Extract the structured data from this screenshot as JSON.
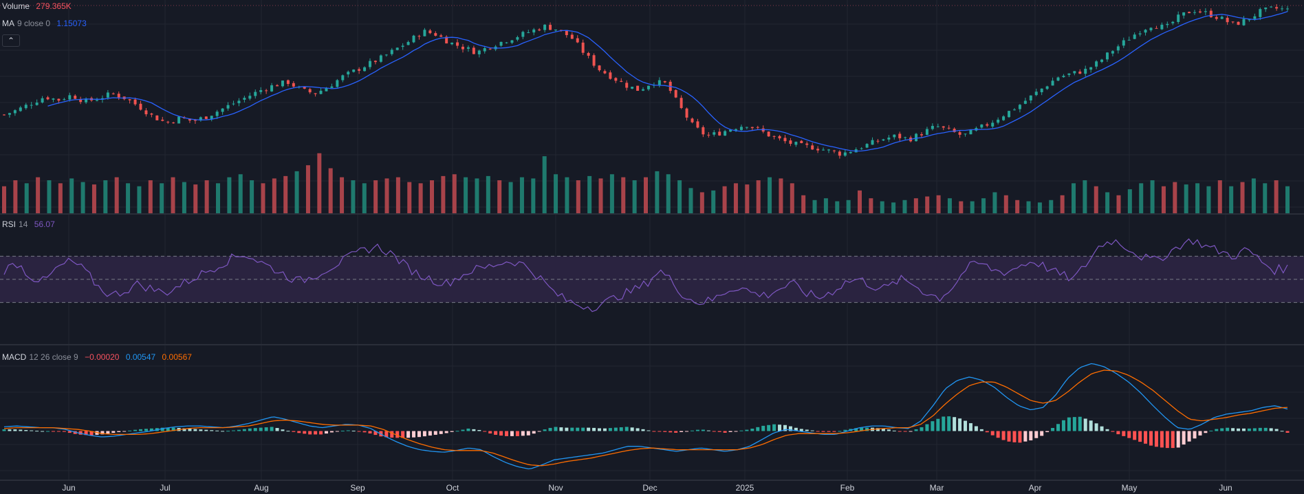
{
  "legend": {
    "volume": {
      "name": "Volume",
      "value": "279.365K",
      "value_color": "#f7525f"
    },
    "ma": {
      "name": "MA",
      "params": "9 close 0",
      "value": "1.15073",
      "value_color": "#2962ff"
    },
    "rsi": {
      "name": "RSI",
      "params": "14",
      "value": "56.07",
      "value_color": "#7e57c2"
    },
    "macd": {
      "name": "MACD",
      "params": "12 26 close 9",
      "hist_value": "−0.00020",
      "hist_color": "#f7525f",
      "macd_value": "0.00547",
      "macd_color": "#2196f3",
      "signal_value": "0.00567",
      "signal_color": "#ff6d00"
    },
    "collapse_button": "⌃"
  },
  "x_axis": {
    "labels": [
      "Jun",
      "Jul",
      "Aug",
      "Sep",
      "Oct",
      "Nov",
      "Dec",
      "2025",
      "Feb",
      "Mar",
      "Apr",
      "May",
      "Jun"
    ]
  },
  "colors": {
    "background": "#161a25",
    "grid": "#222631",
    "up": "#26a69a",
    "down": "#ef5350",
    "volume_up": "#1f7a6e",
    "volume_down": "#a8434a",
    "ma_line": "#2962ff",
    "rsi_line": "#7e57c2",
    "rsi_band": "#2a2340",
    "macd_line": "#2196f3",
    "signal_line": "#ff6d00",
    "hist_up_strong": "#26a69a",
    "hist_up_weak": "#b2dfdb",
    "hist_down_strong": "#ff5252",
    "hist_down_weak": "#ffcdd2"
  },
  "chart_data": [
    {
      "type": "candlestick",
      "title": "",
      "x_range": [
        "May 2024",
        "Jun 2025"
      ],
      "grid": true,
      "price_path": [
        0.35,
        0.38,
        0.42,
        0.46,
        0.44,
        0.47,
        0.43,
        0.45,
        0.48,
        0.45,
        0.4,
        0.34,
        0.3,
        0.33,
        0.31,
        0.34,
        0.38,
        0.42,
        0.46,
        0.5,
        0.53,
        0.55,
        0.5,
        0.48,
        0.52,
        0.58,
        0.62,
        0.66,
        0.7,
        0.75,
        0.8,
        0.86,
        0.84,
        0.79,
        0.76,
        0.73,
        0.77,
        0.8,
        0.83,
        0.86,
        0.89,
        0.87,
        0.82,
        0.72,
        0.63,
        0.58,
        0.53,
        0.5,
        0.55,
        0.54,
        0.4,
        0.28,
        0.22,
        0.24,
        0.27,
        0.29,
        0.25,
        0.21,
        0.18,
        0.16,
        0.15,
        0.13,
        0.11,
        0.14,
        0.17,
        0.2,
        0.22,
        0.2,
        0.24,
        0.28,
        0.25,
        0.22,
        0.26,
        0.3,
        0.35,
        0.4,
        0.46,
        0.52,
        0.58,
        0.6,
        0.62,
        0.67,
        0.74,
        0.8,
        0.86,
        0.9,
        0.88,
        0.95,
        0.99,
        0.97,
        0.94,
        0.9,
        0.93,
        0.98,
        1.0,
        0.99
      ],
      "ma_period": 9,
      "rsi_levels": {
        "upper": 70,
        "middle": 50,
        "lower": 30,
        "range": [
          0,
          100
        ]
      },
      "rsi_path": [
        58,
        64,
        52,
        48,
        60,
        66,
        58,
        44,
        36,
        40,
        46,
        42,
        38,
        44,
        50,
        56,
        62,
        68,
        72,
        66,
        60,
        54,
        48,
        52,
        58,
        64,
        70,
        76,
        78,
        72,
        62,
        54,
        50,
        46,
        52,
        58,
        60,
        64,
        66,
        62,
        52,
        40,
        32,
        28,
        26,
        30,
        36,
        40,
        46,
        58,
        48,
        34,
        30,
        32,
        40,
        44,
        38,
        36,
        42,
        46,
        38,
        34,
        40,
        48,
        50,
        44,
        42,
        50,
        46,
        38,
        34,
        44,
        60,
        64,
        58,
        56,
        62,
        66,
        60,
        54,
        50,
        64,
        80,
        84,
        78,
        70,
        66,
        72,
        80,
        84,
        78,
        74,
        70,
        76,
        66,
        58,
        60
      ],
      "macd_path": [
        0.0005,
        0.0006,
        0.0005,
        0.0004,
        0.0004,
        0.0002,
        -0.0002,
        -0.0005,
        -0.0007,
        -0.0006,
        -0.0004,
        -0.0002,
        0.0,
        0.0003,
        0.0005,
        0.0006,
        0.0006,
        0.0005,
        0.0004,
        0.0006,
        0.0009,
        0.0013,
        0.0017,
        0.0014,
        0.001,
        0.0006,
        0.0004,
        0.0006,
        0.0008,
        0.0007,
        0.0003,
        -0.0005,
        -0.0012,
        -0.0018,
        -0.0022,
        -0.0024,
        -0.0025,
        -0.0023,
        -0.002,
        -0.0022,
        -0.003,
        -0.0037,
        -0.0042,
        -0.0045,
        -0.004,
        -0.0034,
        -0.0032,
        -0.003,
        -0.0028,
        -0.0026,
        -0.0022,
        -0.0018,
        -0.0018,
        -0.002,
        -0.0022,
        -0.0024,
        -0.0022,
        -0.002,
        -0.0022,
        -0.0024,
        -0.0022,
        -0.0018,
        -0.001,
        -0.0002,
        0.0002,
        0.0,
        -0.0002,
        -0.0004,
        -0.0004,
        0.0,
        0.0004,
        0.0006,
        0.0006,
        0.0004,
        0.0003,
        0.0012,
        0.003,
        0.005,
        0.006,
        0.0064,
        0.006,
        0.0052,
        0.004,
        0.003,
        0.0025,
        0.0028,
        0.0042,
        0.0062,
        0.0075,
        0.008,
        0.0076,
        0.0068,
        0.0058,
        0.0045,
        0.003,
        0.0016,
        0.0004,
        0.0002,
        0.0008,
        0.0016,
        0.002,
        0.0022,
        0.0024,
        0.0028,
        0.003,
        0.0026
      ],
      "signal_path": [
        0.0003,
        0.0004,
        0.0004,
        0.0004,
        0.0004,
        0.0003,
        0.0002,
        0.0,
        -0.0003,
        -0.0004,
        -0.0004,
        -0.0004,
        -0.0003,
        -0.0001,
        0.0001,
        0.0003,
        0.0004,
        0.0004,
        0.0004,
        0.0005,
        0.0006,
        0.0009,
        0.0012,
        0.0013,
        0.0012,
        0.001,
        0.0008,
        0.0007,
        0.0007,
        0.0007,
        0.0006,
        0.0002,
        -0.0004,
        -0.001,
        -0.0015,
        -0.0019,
        -0.0022,
        -0.0023,
        -0.0023,
        -0.0023,
        -0.0026,
        -0.0031,
        -0.0036,
        -0.004,
        -0.0041,
        -0.0039,
        -0.0036,
        -0.0034,
        -0.0032,
        -0.0029,
        -0.0026,
        -0.0023,
        -0.0021,
        -0.002,
        -0.0021,
        -0.0022,
        -0.0022,
        -0.0022,
        -0.0022,
        -0.0022,
        -0.0022,
        -0.002,
        -0.0016,
        -0.001,
        -0.0005,
        -0.0003,
        -0.0003,
        -0.0003,
        -0.0003,
        -0.0002,
        0.0,
        0.0002,
        0.0003,
        0.0004,
        0.0004,
        0.0008,
        0.0018,
        0.0032,
        0.0044,
        0.0054,
        0.0058,
        0.0058,
        0.0052,
        0.0044,
        0.0036,
        0.0033,
        0.0036,
        0.0046,
        0.0058,
        0.0068,
        0.0072,
        0.0071,
        0.0066,
        0.0058,
        0.0048,
        0.0036,
        0.0024,
        0.0014,
        0.0012,
        0.0014,
        0.0016,
        0.0019,
        0.0021,
        0.0024,
        0.0027,
        0.0028
      ],
      "ylim": [
        -0.005,
        0.0085
      ],
      "volume_path": [
        0.45,
        0.55,
        0.5,
        0.6,
        0.55,
        0.5,
        0.58,
        0.52,
        0.48,
        0.55,
        0.6,
        0.5,
        0.45,
        0.55,
        0.5,
        0.6,
        0.52,
        0.48,
        0.55,
        0.5,
        0.6,
        0.65,
        0.55,
        0.5,
        0.58,
        0.62,
        0.7,
        0.8,
        1.0,
        0.75,
        0.6,
        0.55,
        0.5,
        0.55,
        0.58,
        0.6,
        0.52,
        0.5,
        0.55,
        0.62,
        0.65,
        0.6,
        0.58,
        0.62,
        0.55,
        0.52,
        0.6,
        0.58,
        0.95,
        0.65,
        0.6,
        0.55,
        0.62,
        0.58,
        0.65,
        0.6,
        0.55,
        0.6,
        0.7,
        0.65,
        0.55,
        0.42,
        0.35,
        0.38,
        0.45,
        0.5,
        0.48,
        0.55,
        0.6,
        0.58,
        0.5,
        0.3,
        0.22,
        0.25,
        0.2,
        0.22,
        0.38,
        0.25,
        0.2,
        0.18,
        0.22,
        0.25,
        0.28,
        0.3,
        0.25,
        0.2,
        0.2,
        0.25,
        0.35,
        0.3,
        0.22,
        0.2,
        0.18,
        0.22,
        0.3,
        0.5,
        0.55,
        0.45,
        0.35,
        0.3,
        0.4,
        0.5,
        0.55,
        0.45,
        0.52,
        0.48,
        0.5,
        0.45,
        0.55,
        0.45,
        0.52,
        0.58,
        0.5,
        0.55,
        0.45
      ]
    }
  ]
}
